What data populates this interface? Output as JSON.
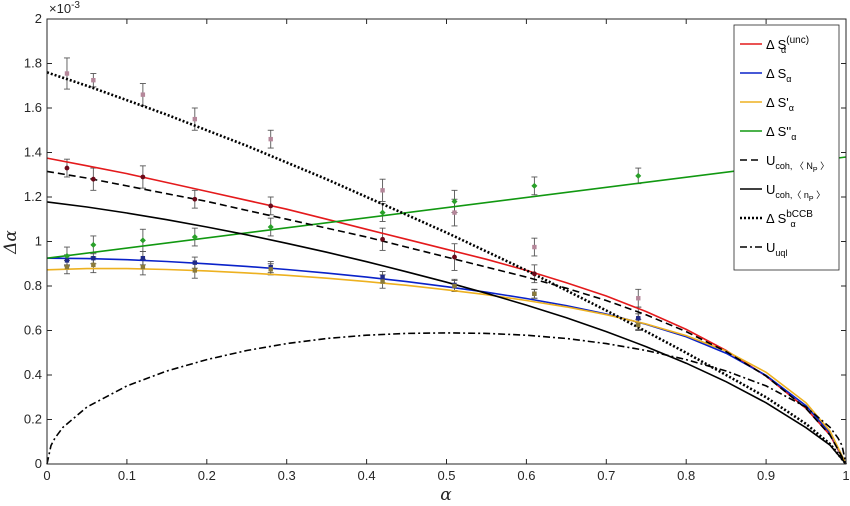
{
  "chart_data": {
    "type": "line",
    "title": "",
    "xlabel": "α",
    "ylabel": "Δα",
    "xlim": [
      0,
      1
    ],
    "ylim": [
      0,
      2.0
    ],
    "y_exponent_label": "×10",
    "y_exponent_value": "-3",
    "x_ticks": [
      "0",
      "0.1",
      "0.2",
      "0.3",
      "0.4",
      "0.5",
      "0.6",
      "0.7",
      "0.8",
      "0.9",
      "1"
    ],
    "y_ticks": [
      "0",
      "0.2",
      "0.4",
      "0.6",
      "0.8",
      "1",
      "1.2",
      "1.4",
      "1.6",
      "1.8",
      "2"
    ],
    "grid": false,
    "legend_position": "top-right",
    "series": [
      {
        "name": "Δ S_α^(unc)",
        "legend": {
          "main": "Δ S",
          "sub": "α",
          "sup": "(unc)"
        },
        "color": "#e41a1c",
        "dash": "solid",
        "x": [
          0,
          0.05,
          0.1,
          0.15,
          0.2,
          0.25,
          0.3,
          0.35,
          0.4,
          0.45,
          0.5,
          0.55,
          0.6,
          0.65,
          0.7,
          0.75,
          0.8,
          0.85,
          0.9,
          0.95,
          0.98,
          1.0
        ],
        "y": [
          1.375,
          1.34,
          1.305,
          1.265,
          1.225,
          1.185,
          1.145,
          1.1,
          1.055,
          1.01,
          0.965,
          0.92,
          0.87,
          0.815,
          0.755,
          0.685,
          0.605,
          0.51,
          0.395,
          0.25,
          0.13,
          0
        ]
      },
      {
        "name": "Δ S_α",
        "legend": {
          "main": "Δ S",
          "sub": "α",
          "sup": ""
        },
        "color": "#0a22c9",
        "dash": "solid",
        "x": [
          0,
          0.05,
          0.1,
          0.15,
          0.2,
          0.25,
          0.3,
          0.35,
          0.4,
          0.45,
          0.5,
          0.55,
          0.6,
          0.65,
          0.7,
          0.75,
          0.8,
          0.85,
          0.9,
          0.95,
          0.98,
          1.0
        ],
        "y": [
          0.925,
          0.923,
          0.918,
          0.91,
          0.9,
          0.888,
          0.874,
          0.858,
          0.84,
          0.82,
          0.797,
          0.772,
          0.744,
          0.712,
          0.674,
          0.628,
          0.572,
          0.498,
          0.398,
          0.262,
          0.14,
          0
        ]
      },
      {
        "name": "Δ S'_α",
        "legend": {
          "main": "Δ S'",
          "sub": "α",
          "sup": ""
        },
        "color": "#edb120",
        "dash": "solid",
        "x": [
          0,
          0.05,
          0.1,
          0.15,
          0.2,
          0.25,
          0.3,
          0.35,
          0.4,
          0.45,
          0.5,
          0.55,
          0.6,
          0.65,
          0.7,
          0.75,
          0.8,
          0.85,
          0.9,
          0.95,
          0.98,
          1.0
        ],
        "y": [
          0.873,
          0.878,
          0.878,
          0.874,
          0.868,
          0.859,
          0.848,
          0.835,
          0.82,
          0.803,
          0.783,
          0.761,
          0.735,
          0.706,
          0.671,
          0.629,
          0.577,
          0.508,
          0.412,
          0.275,
          0.148,
          0
        ]
      },
      {
        "name": "Δ S''_α",
        "legend": {
          "main": "Δ S''",
          "sub": "α",
          "sup": ""
        },
        "color": "#119811",
        "dash": "solid",
        "x": [
          0,
          1.0
        ],
        "y": [
          0.925,
          1.38
        ]
      },
      {
        "name": "U_coh,⟨N_P⟩",
        "legend": {
          "main": "U",
          "sub": "coh, 〈 N",
          "sub2": "P",
          "tail": " 〉"
        },
        "color": "#000000",
        "dash": "dashed",
        "x": [
          0,
          0.05,
          0.1,
          0.15,
          0.2,
          0.25,
          0.3,
          0.35,
          0.4,
          0.45,
          0.5,
          0.55,
          0.6,
          0.65,
          0.7,
          0.75,
          0.8,
          0.85,
          0.9,
          0.95,
          0.98,
          1.0
        ],
        "y": [
          1.315,
          1.285,
          1.25,
          1.215,
          1.18,
          1.14,
          1.1,
          1.06,
          1.02,
          0.975,
          0.93,
          0.885,
          0.84,
          0.79,
          0.735,
          0.67,
          0.595,
          0.505,
          0.395,
          0.25,
          0.13,
          0
        ]
      },
      {
        "name": "U_coh,⟨n_P⟩",
        "legend": {
          "main": "U",
          "sub": "coh,〈 n",
          "sub2": "P",
          "tail": " 〉"
        },
        "color": "#000000",
        "dash": "solid",
        "x": [
          0,
          0.05,
          0.1,
          0.15,
          0.2,
          0.25,
          0.3,
          0.35,
          0.4,
          0.45,
          0.5,
          0.55,
          0.6,
          0.65,
          0.7,
          0.75,
          0.8,
          0.85,
          0.9,
          0.95,
          0.98,
          1.0
        ],
        "y": [
          1.178,
          1.155,
          1.128,
          1.098,
          1.065,
          1.03,
          0.992,
          0.952,
          0.909,
          0.864,
          0.817,
          0.767,
          0.714,
          0.657,
          0.595,
          0.527,
          0.453,
          0.37,
          0.275,
          0.163,
          0.085,
          0
        ]
      },
      {
        "name": "Δ S_α^bCCB",
        "legend": {
          "main": "Δ S",
          "sub": "α",
          "sup": "bCCB"
        },
        "color": "#000000",
        "dash": "dotted",
        "x": [
          0,
          0.05,
          0.1,
          0.15,
          0.2,
          0.25,
          0.3,
          0.35,
          0.4,
          0.45,
          0.5,
          0.55,
          0.6,
          0.65,
          0.7,
          0.75,
          0.8,
          0.85,
          0.9,
          0.95,
          0.98,
          1.0
        ],
        "y": [
          1.76,
          1.7,
          1.635,
          1.57,
          1.5,
          1.43,
          1.355,
          1.28,
          1.2,
          1.12,
          1.04,
          0.955,
          0.87,
          0.78,
          0.69,
          0.595,
          0.5,
          0.4,
          0.3,
          0.18,
          0.09,
          0
        ]
      },
      {
        "name": "U_uql",
        "legend": {
          "main": "U",
          "sub": "uql",
          "sup": ""
        },
        "color": "#000000",
        "dash": "dashdot",
        "x": [
          0,
          0.005,
          0.01,
          0.02,
          0.05,
          0.1,
          0.15,
          0.2,
          0.25,
          0.3,
          0.35,
          0.4,
          0.45,
          0.5,
          0.55,
          0.6,
          0.65,
          0.7,
          0.75,
          0.8,
          0.85,
          0.9,
          0.95,
          0.98,
          0.99,
          0.995,
          1.0
        ],
        "y": [
          0,
          0.083,
          0.117,
          0.165,
          0.256,
          0.351,
          0.418,
          0.469,
          0.51,
          0.541,
          0.564,
          0.579,
          0.587,
          0.589,
          0.587,
          0.579,
          0.564,
          0.541,
          0.51,
          0.469,
          0.418,
          0.351,
          0.256,
          0.165,
          0.117,
          0.083,
          0
        ]
      }
    ],
    "markers": [
      {
        "series": "Δ S_α^(unc)",
        "color": "#6b0a1a",
        "shape": "circle",
        "x": [
          0.025,
          0.058,
          0.12,
          0.185,
          0.28,
          0.42,
          0.51,
          0.61,
          0.74
        ],
        "y": [
          1.33,
          1.28,
          1.29,
          1.19,
          1.16,
          1.01,
          0.93,
          0.855,
          0.655
        ],
        "err": [
          0.04,
          0.05,
          0.05,
          0.04,
          0.04,
          0.05,
          0.06,
          0.04,
          0.05
        ]
      },
      {
        "series": "Δ S_α^bCCB",
        "color": "#b5879a",
        "shape": "square",
        "x": [
          0.025,
          0.058,
          0.12,
          0.185,
          0.28,
          0.42,
          0.51,
          0.61,
          0.74
        ],
        "y": [
          1.755,
          1.725,
          1.66,
          1.55,
          1.46,
          1.23,
          1.13,
          0.975,
          0.745
        ],
        "err": [
          0.07,
          0.03,
          0.05,
          0.05,
          0.04,
          0.05,
          0.06,
          0.04,
          0.04
        ]
      },
      {
        "series": "Δ S''_α",
        "color": "#2aa02a",
        "shape": "diamond",
        "x": [
          0.025,
          0.058,
          0.12,
          0.185,
          0.28,
          0.42,
          0.51,
          0.61,
          0.74
        ],
        "y": [
          0.935,
          0.985,
          1.005,
          1.02,
          1.065,
          1.13,
          1.18,
          1.25,
          1.295
        ],
        "err": [
          0.04,
          0.04,
          0.05,
          0.04,
          0.04,
          0.04,
          0.05,
          0.04,
          0.035
        ]
      },
      {
        "series": "Δ S_α",
        "color": "#1f2a88",
        "shape": "square",
        "x": [
          0.025,
          0.058,
          0.12,
          0.185,
          0.28,
          0.42,
          0.51,
          0.61,
          0.74
        ],
        "y": [
          0.915,
          0.925,
          0.925,
          0.905,
          0.885,
          0.84,
          0.805,
          0.765,
          0.655
        ],
        "err": [
          0.025,
          0.025,
          0.03,
          0.025,
          0.025,
          0.025,
          0.025,
          0.02,
          0.02
        ]
      },
      {
        "series": "Δ S'_α",
        "color": "#8a7a3a",
        "shape": "square",
        "x": [
          0.025,
          0.058,
          0.12,
          0.185,
          0.28,
          0.42,
          0.51,
          0.61,
          0.74
        ],
        "y": [
          0.885,
          0.895,
          0.885,
          0.87,
          0.875,
          0.82,
          0.8,
          0.765,
          0.625
        ],
        "err": [
          0.03,
          0.035,
          0.035,
          0.035,
          0.025,
          0.03,
          0.025,
          0.02,
          0.025
        ]
      }
    ]
  }
}
